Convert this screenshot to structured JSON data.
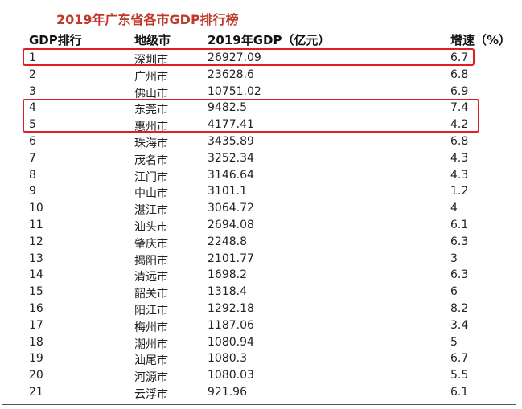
{
  "title": "2019年广东省各市GDP排行榜",
  "headers": {
    "rank": "GDP排行",
    "city": "地级市",
    "gdp": "2019年GDP（亿元）",
    "rate": "增速（%）"
  },
  "highlight_color": "#e02020",
  "title_color": "#c0392b",
  "rows": [
    {
      "rank": "1",
      "city": "深圳市",
      "gdp": "26927.09",
      "rate": "6.7"
    },
    {
      "rank": "2",
      "city": "广州市",
      "gdp": "23628.6",
      "rate": "6.8"
    },
    {
      "rank": "3",
      "city": "佛山市",
      "gdp": "10751.02",
      "rate": "6.9"
    },
    {
      "rank": "4",
      "city": "东莞市",
      "gdp": "9482.5",
      "rate": "7.4"
    },
    {
      "rank": "5",
      "city": "惠州市",
      "gdp": "4177.41",
      "rate": "4.2"
    },
    {
      "rank": "6",
      "city": "珠海市",
      "gdp": "3435.89",
      "rate": "6.8"
    },
    {
      "rank": "7",
      "city": "茂名市",
      "gdp": "3252.34",
      "rate": "4.3"
    },
    {
      "rank": "8",
      "city": "江门市",
      "gdp": "3146.64",
      "rate": "4.3"
    },
    {
      "rank": "9",
      "city": "中山市",
      "gdp": "3101.1",
      "rate": "1.2"
    },
    {
      "rank": "10",
      "city": "湛江市",
      "gdp": "3064.72",
      "rate": "4"
    },
    {
      "rank": "11",
      "city": "汕头市",
      "gdp": "2694.08",
      "rate": "6.1"
    },
    {
      "rank": "12",
      "city": "肇庆市",
      "gdp": "2248.8",
      "rate": "6.3"
    },
    {
      "rank": "13",
      "city": "揭阳市",
      "gdp": "2101.77",
      "rate": "3"
    },
    {
      "rank": "14",
      "city": "清远市",
      "gdp": "1698.2",
      "rate": "6.3"
    },
    {
      "rank": "15",
      "city": "韶关市",
      "gdp": "1318.4",
      "rate": "6"
    },
    {
      "rank": "16",
      "city": "阳江市",
      "gdp": "1292.18",
      "rate": "8.2"
    },
    {
      "rank": "17",
      "city": "梅州市",
      "gdp": "1187.06",
      "rate": "3.4"
    },
    {
      "rank": "18",
      "city": "潮州市",
      "gdp": "1080.94",
      "rate": "5"
    },
    {
      "rank": "19",
      "city": "汕尾市",
      "gdp": "1080.3",
      "rate": "6.7"
    },
    {
      "rank": "20",
      "city": "河源市",
      "gdp": "1080.03",
      "rate": "5.5"
    },
    {
      "rank": "21",
      "city": "云浮市",
      "gdp": "921.96",
      "rate": "6.1"
    }
  ]
}
